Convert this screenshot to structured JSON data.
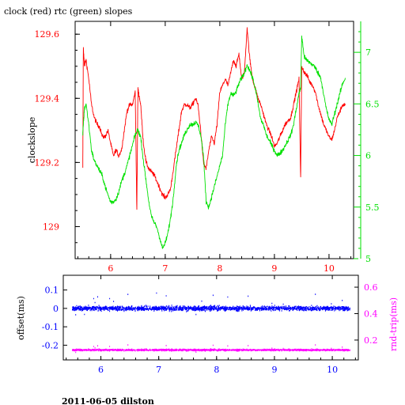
{
  "footer": {
    "text": "2011-06-05 dilston"
  },
  "colors": {
    "clock": "#ff0000",
    "rtc": "#00e000",
    "offset": "#0000ff",
    "rndtrip": "#ff00ff",
    "frame": "#000000"
  },
  "chart_data": [
    {
      "type": "line",
      "title": "clock (red) rtc (green) slopes",
      "ylabel": "clockslope",
      "xlim": [
        5.35,
        10.45
      ],
      "ylim_left": [
        128.9,
        129.64
      ],
      "ylim_right": [
        5.0,
        7.3
      ],
      "x_ticks": [
        6,
        7,
        8,
        9,
        10
      ],
      "y_left_ticks": [
        "129",
        "129.2",
        "129.4",
        "129.6"
      ],
      "y_right_ticks": [
        "5",
        "5.5",
        "6",
        "6.5",
        "7"
      ],
      "series": [
        {
          "axis": "left",
          "color": "#ff0000",
          "x": [
            5.49,
            5.5,
            5.52,
            5.55,
            5.6,
            5.65,
            5.7,
            5.75,
            5.8,
            5.85,
            5.9,
            5.95,
            6.0,
            6.05,
            6.1,
            6.15,
            6.2,
            6.25,
            6.3,
            6.35,
            6.4,
            6.45,
            6.48,
            6.5,
            6.52,
            6.55,
            6.6,
            6.65,
            6.7,
            6.75,
            6.8,
            6.85,
            6.9,
            6.95,
            7.0,
            7.05,
            7.1,
            7.15,
            7.2,
            7.25,
            7.3,
            7.35,
            7.4,
            7.45,
            7.5,
            7.55,
            7.6,
            7.65,
            7.7,
            7.75,
            7.8,
            7.85,
            7.9,
            7.95,
            8.0,
            8.05,
            8.1,
            8.15,
            8.2,
            8.25,
            8.3,
            8.35,
            8.4,
            8.45,
            8.5,
            8.55,
            8.6,
            8.65,
            8.7,
            8.75,
            8.8,
            8.85,
            8.9,
            8.95,
            9.0,
            9.05,
            9.1,
            9.15,
            9.2,
            9.25,
            9.3,
            9.35,
            9.4,
            9.45,
            9.48,
            9.5,
            9.55,
            9.6,
            9.65,
            9.7,
            9.75,
            9.8,
            9.85,
            9.9,
            9.95,
            10.0,
            10.05,
            10.1,
            10.15,
            10.2,
            10.25,
            10.3
          ],
          "y": [
            129.18,
            129.56,
            129.5,
            129.52,
            129.46,
            129.38,
            129.34,
            129.32,
            129.31,
            129.28,
            129.28,
            129.3,
            129.26,
            129.22,
            129.24,
            129.22,
            129.24,
            129.3,
            129.36,
            129.38,
            129.38,
            129.42,
            129.05,
            129.43,
            129.41,
            129.38,
            129.26,
            129.2,
            129.18,
            129.17,
            129.16,
            129.14,
            129.12,
            129.1,
            129.09,
            129.1,
            129.12,
            129.18,
            129.24,
            129.3,
            129.36,
            129.38,
            129.38,
            129.37,
            129.38,
            129.4,
            129.38,
            129.3,
            129.2,
            129.18,
            129.24,
            129.28,
            129.26,
            129.32,
            129.42,
            129.44,
            129.46,
            129.44,
            129.48,
            129.52,
            129.5,
            129.54,
            129.46,
            129.48,
            129.62,
            129.52,
            129.46,
            129.43,
            129.4,
            129.38,
            129.35,
            129.32,
            129.3,
            129.28,
            129.25,
            129.26,
            129.28,
            129.3,
            129.32,
            129.33,
            129.34,
            129.38,
            129.42,
            129.46,
            129.15,
            129.5,
            129.48,
            129.47,
            129.45,
            129.44,
            129.42,
            129.38,
            129.35,
            129.32,
            129.3,
            129.28,
            129.27,
            129.3,
            129.34,
            129.36,
            129.38,
            129.38
          ]
        },
        {
          "axis": "right",
          "color": "#00e000",
          "x": [
            5.49,
            5.5,
            5.52,
            5.55,
            5.6,
            5.65,
            5.7,
            5.75,
            5.8,
            5.85,
            5.9,
            5.95,
            6.0,
            6.05,
            6.1,
            6.15,
            6.2,
            6.25,
            6.3,
            6.35,
            6.4,
            6.45,
            6.5,
            6.55,
            6.6,
            6.65,
            6.7,
            6.75,
            6.8,
            6.85,
            6.9,
            6.95,
            7.0,
            7.05,
            7.1,
            7.15,
            7.2,
            7.25,
            7.3,
            7.35,
            7.4,
            7.45,
            7.5,
            7.55,
            7.6,
            7.65,
            7.7,
            7.75,
            7.8,
            7.85,
            7.9,
            7.95,
            8.0,
            8.05,
            8.1,
            8.15,
            8.2,
            8.25,
            8.3,
            8.35,
            8.4,
            8.45,
            8.5,
            8.55,
            8.6,
            8.65,
            8.7,
            8.75,
            8.8,
            8.85,
            8.9,
            8.95,
            9.0,
            9.05,
            9.1,
            9.15,
            9.2,
            9.25,
            9.3,
            9.35,
            9.4,
            9.45,
            9.48,
            9.5,
            9.55,
            9.6,
            9.65,
            9.7,
            9.75,
            9.8,
            9.85,
            9.9,
            9.95,
            10.0,
            10.05,
            10.1,
            10.15,
            10.2,
            10.25,
            10.3
          ],
          "y": [
            6.2,
            6.3,
            6.45,
            6.5,
            6.3,
            6.05,
            5.95,
            5.9,
            5.85,
            5.8,
            5.7,
            5.62,
            5.55,
            5.55,
            5.58,
            5.65,
            5.75,
            5.82,
            5.9,
            6.0,
            6.1,
            6.2,
            6.25,
            6.18,
            5.95,
            5.75,
            5.55,
            5.4,
            5.35,
            5.3,
            5.2,
            5.1,
            5.15,
            5.25,
            5.4,
            5.6,
            5.9,
            6.05,
            6.12,
            6.2,
            6.25,
            6.3,
            6.3,
            6.32,
            6.3,
            6.2,
            6.0,
            5.55,
            5.5,
            5.6,
            5.7,
            5.8,
            5.9,
            6.0,
            6.3,
            6.5,
            6.6,
            6.58,
            6.62,
            6.7,
            6.75,
            6.8,
            6.88,
            6.82,
            6.75,
            6.65,
            6.5,
            6.35,
            6.3,
            6.2,
            6.15,
            6.1,
            6.05,
            6.0,
            6.02,
            6.05,
            6.1,
            6.15,
            6.2,
            6.3,
            6.45,
            6.6,
            6.65,
            7.15,
            6.95,
            6.92,
            6.9,
            6.88,
            6.85,
            6.8,
            6.75,
            6.6,
            6.45,
            6.35,
            6.3,
            6.4,
            6.5,
            6.6,
            6.7,
            6.75
          ]
        }
      ]
    },
    {
      "type": "scatter",
      "ylabel_left": "offset(ms)",
      "ylabel_right": "rnd-trip(ms)",
      "xlim": [
        5.35,
        10.45
      ],
      "ylim_left": [
        -0.28,
        0.18
      ],
      "ylim_right": [
        0.05,
        0.69
      ],
      "x_ticks": [
        6,
        7,
        8,
        9,
        10
      ],
      "y_left_ticks": [
        "-0.2",
        "-0.1",
        "0",
        "0.1"
      ],
      "y_right_ticks": [
        "0.2",
        "0.4",
        "0.6"
      ],
      "series": [
        {
          "axis": "left",
          "color": "#0000ff",
          "x_range": [
            5.5,
            10.3
          ],
          "center": 0.0,
          "spread": 0.02
        },
        {
          "axis": "right",
          "color": "#ff00ff",
          "x_range": [
            5.5,
            10.3
          ],
          "center": 0.125,
          "spread": 0.01
        }
      ]
    }
  ]
}
